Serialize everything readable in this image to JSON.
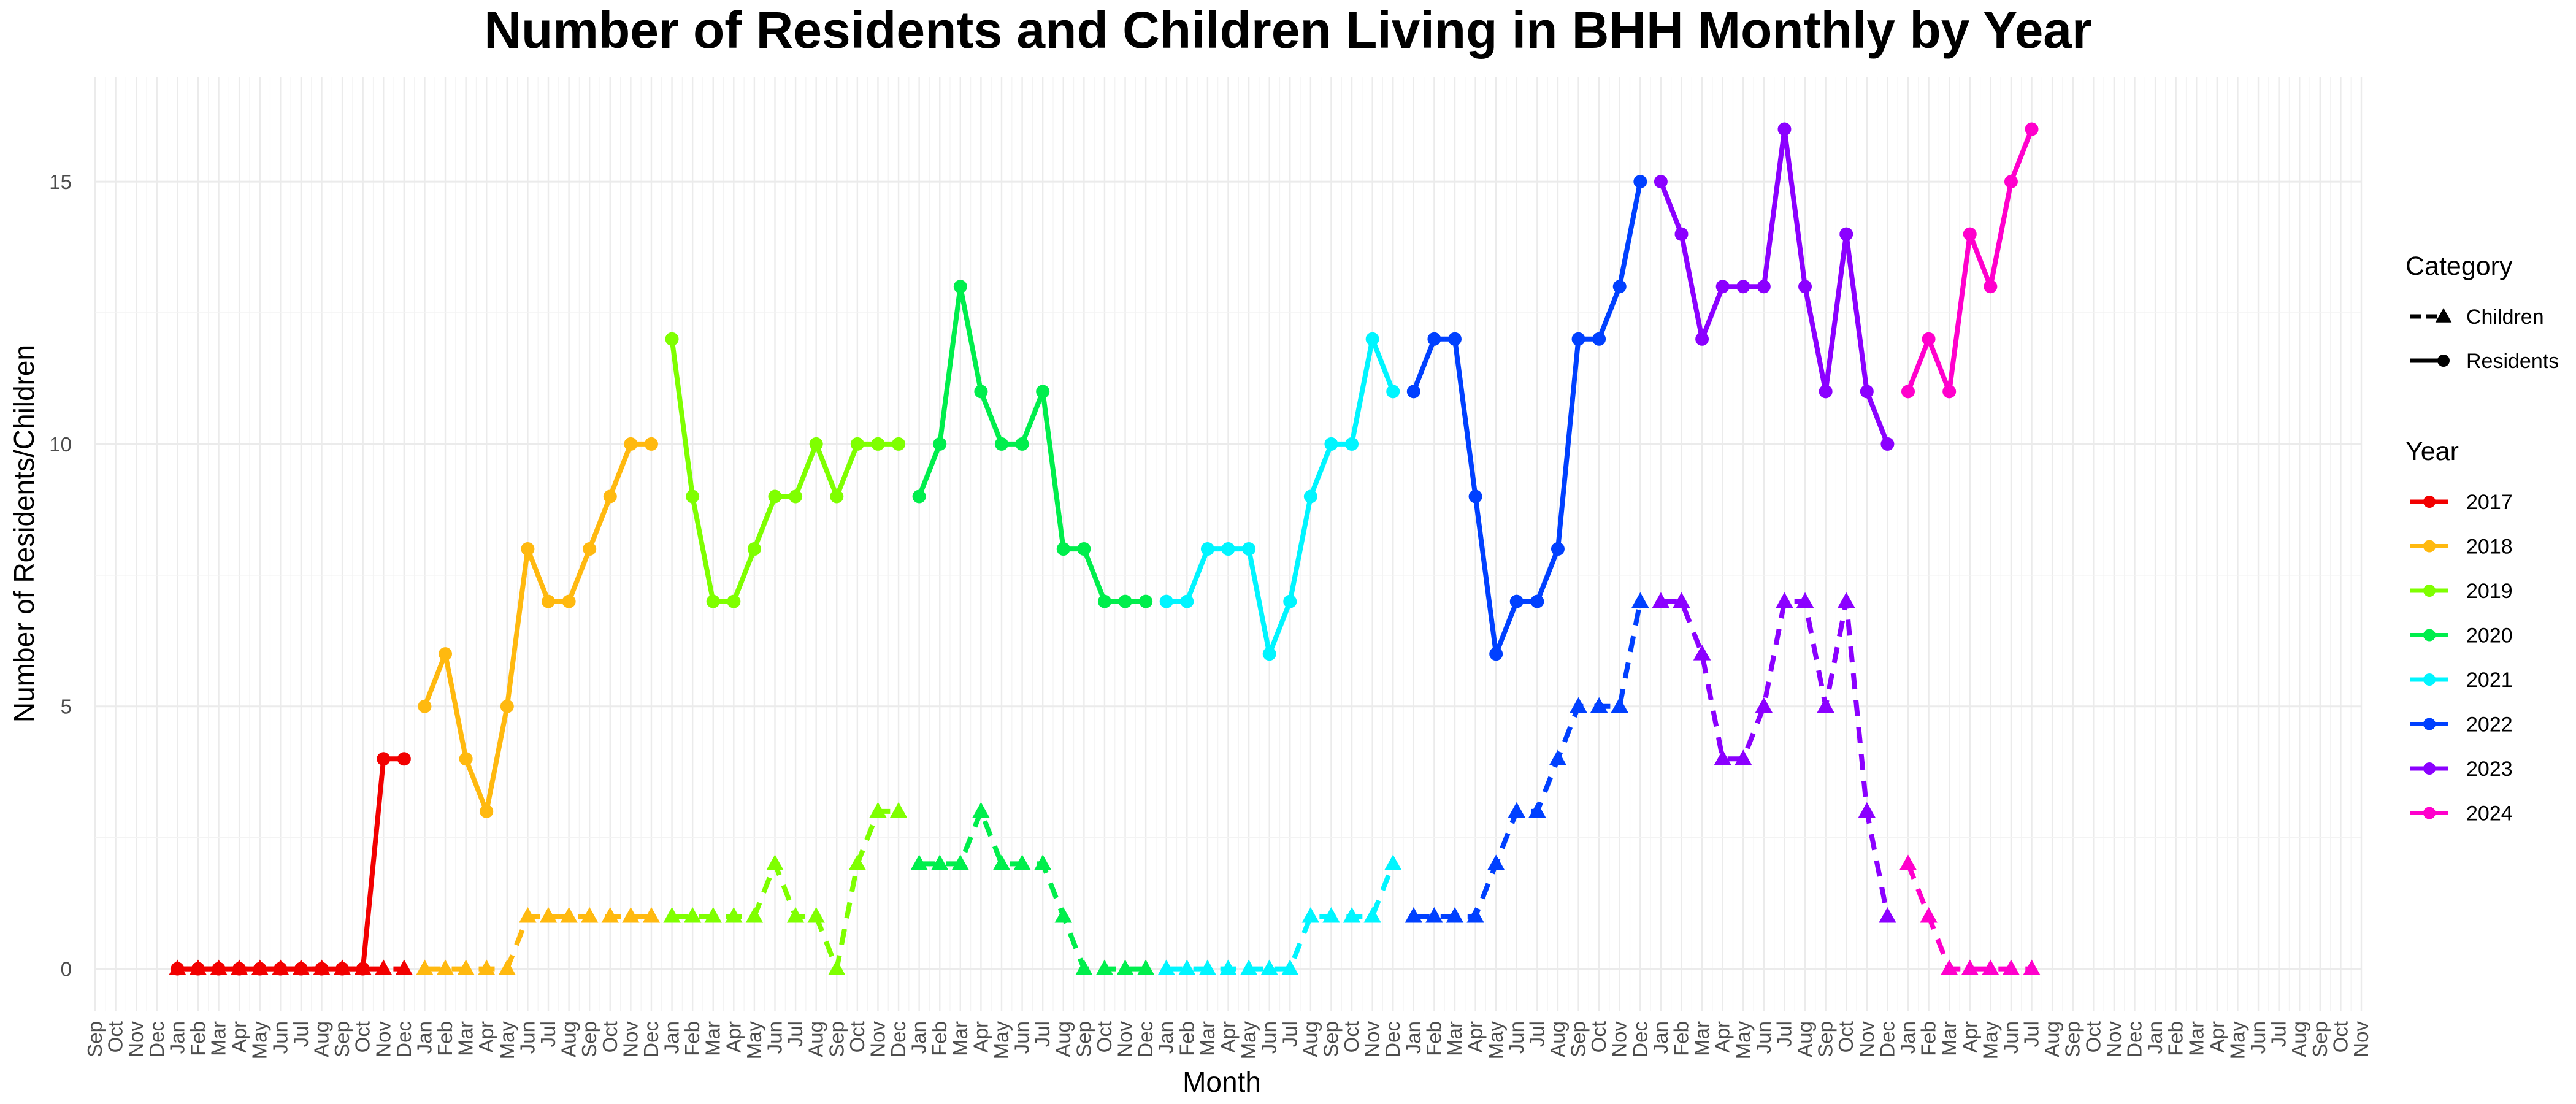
{
  "chart_data": {
    "type": "line",
    "title": "Number of Residents and Children Living in BHH Monthly by Year",
    "xlabel": "Month",
    "ylabel": "Number of Residents/Children",
    "ylim": [
      -0.8,
      17
    ],
    "y_ticks": [
      0,
      5,
      10,
      15
    ],
    "x_tick_labels": [
      "Sep",
      "Oct",
      "Nov",
      "Dec",
      "Jan",
      "Feb",
      "Mar",
      "Apr",
      "May",
      "Jun",
      "Jul",
      "Aug",
      "Sep",
      "Oct",
      "Nov",
      "Dec",
      "Jan",
      "Feb",
      "Mar",
      "Apr",
      "May",
      "Jun",
      "Jul",
      "Aug",
      "Sep",
      "Oct",
      "Nov",
      "Dec",
      "Jan",
      "Feb",
      "Mar",
      "Apr",
      "May",
      "Jun",
      "Jul",
      "Aug",
      "Sep",
      "Oct",
      "Nov",
      "Dec",
      "Jan",
      "Feb",
      "Mar",
      "Apr",
      "May",
      "Jun",
      "Jul",
      "Aug",
      "Sep",
      "Oct",
      "Nov",
      "Dec",
      "Jan",
      "Feb",
      "Mar",
      "Apr",
      "May",
      "Jun",
      "Jul",
      "Aug",
      "Sep",
      "Oct",
      "Nov",
      "Dec",
      "Jan",
      "Feb",
      "Mar",
      "Apr",
      "May",
      "Jun",
      "Jul",
      "Aug",
      "Sep",
      "Oct",
      "Nov",
      "Dec",
      "Jan",
      "Feb",
      "Mar",
      "Apr",
      "May",
      "Jun",
      "Jul",
      "Aug",
      "Sep",
      "Oct",
      "Nov",
      "Dec",
      "Jan",
      "Feb",
      "Mar",
      "Apr",
      "May",
      "Jun",
      "Jul",
      "Aug",
      "Sep",
      "Oct",
      "Nov",
      "Dec",
      "Jan",
      "Feb",
      "Mar",
      "Apr",
      "May",
      "Jun",
      "Jul",
      "Aug",
      "Sep",
      "Oct",
      "Nov"
    ],
    "grid": true,
    "legend_placement": "right",
    "legend": {
      "category_title": "Category",
      "category_items": [
        {
          "label": "Children",
          "linetype": "dashed",
          "marker": "triangle"
        },
        {
          "label": "Residents",
          "linetype": "solid",
          "marker": "circle"
        }
      ],
      "year_title": "Year",
      "year_items": [
        {
          "label": "2017",
          "color": "#F20000"
        },
        {
          "label": "2018",
          "color": "#FFB90F"
        },
        {
          "label": "2019",
          "color": "#7FFF00"
        },
        {
          "label": "2020",
          "color": "#00EE4C"
        },
        {
          "label": "2021",
          "color": "#00F5FF"
        },
        {
          "label": "2022",
          "color": "#0040FF"
        },
        {
          "label": "2023",
          "color": "#8B00FF"
        },
        {
          "label": "2024",
          "color": "#FF00CC"
        }
      ]
    },
    "series": [
      {
        "year": "2017",
        "category": "Residents",
        "color": "#F20000",
        "x": [
          "2017-01",
          "2017-02",
          "2017-03",
          "2017-04",
          "2017-05",
          "2017-06",
          "2017-07",
          "2017-08",
          "2017-09",
          "2017-10",
          "2017-11",
          "2017-12"
        ],
        "y": [
          0,
          0,
          0,
          0,
          0,
          0,
          0,
          0,
          0,
          0,
          4,
          4
        ]
      },
      {
        "year": "2017",
        "category": "Children",
        "color": "#F20000",
        "x": [
          "2017-01",
          "2017-02",
          "2017-03",
          "2017-04",
          "2017-05",
          "2017-06",
          "2017-07",
          "2017-08",
          "2017-09",
          "2017-10",
          "2017-11",
          "2017-12"
        ],
        "y": [
          0,
          0,
          0,
          0,
          0,
          0,
          0,
          0,
          0,
          0,
          0,
          0
        ]
      },
      {
        "year": "2018",
        "category": "Residents",
        "color": "#FFB90F",
        "x": [
          "2018-01",
          "2018-02",
          "2018-03",
          "2018-04",
          "2018-05",
          "2018-06",
          "2018-07",
          "2018-08",
          "2018-09",
          "2018-10",
          "2018-11",
          "2018-12"
        ],
        "y": [
          5,
          6,
          4,
          3,
          5,
          8,
          7,
          7,
          8,
          9,
          10,
          10
        ]
      },
      {
        "year": "2018",
        "category": "Children",
        "color": "#FFB90F",
        "x": [
          "2018-01",
          "2018-02",
          "2018-03",
          "2018-04",
          "2018-05",
          "2018-06",
          "2018-07",
          "2018-08",
          "2018-09",
          "2018-10",
          "2018-11",
          "2018-12"
        ],
        "y": [
          0,
          0,
          0,
          0,
          0,
          1,
          1,
          1,
          1,
          1,
          1,
          1
        ]
      },
      {
        "year": "2019",
        "category": "Residents",
        "color": "#7FFF00",
        "x": [
          "2019-01",
          "2019-02",
          "2019-03",
          "2019-04",
          "2019-05",
          "2019-06",
          "2019-07",
          "2019-08",
          "2019-09",
          "2019-10",
          "2019-11",
          "2019-12"
        ],
        "y": [
          12,
          9,
          7,
          7,
          8,
          9,
          9,
          10,
          9,
          10,
          10,
          10
        ]
      },
      {
        "year": "2019",
        "category": "Children",
        "color": "#7FFF00",
        "x": [
          "2019-01",
          "2019-02",
          "2019-03",
          "2019-04",
          "2019-05",
          "2019-06",
          "2019-07",
          "2019-08",
          "2019-09",
          "2019-10",
          "2019-11",
          "2019-12"
        ],
        "y": [
          1,
          1,
          1,
          1,
          1,
          2,
          1,
          1,
          0,
          2,
          3,
          3
        ]
      },
      {
        "year": "2020",
        "category": "Residents",
        "color": "#00EE4C",
        "x": [
          "2020-01",
          "2020-02",
          "2020-03",
          "2020-04",
          "2020-05",
          "2020-06",
          "2020-07",
          "2020-08",
          "2020-09",
          "2020-10",
          "2020-11",
          "2020-12"
        ],
        "y": [
          9,
          10,
          13,
          11,
          10,
          10,
          11,
          8,
          8,
          7,
          7,
          7
        ]
      },
      {
        "year": "2020",
        "category": "Children",
        "color": "#00EE4C",
        "x": [
          "2020-01",
          "2020-02",
          "2020-03",
          "2020-04",
          "2020-05",
          "2020-06",
          "2020-07",
          "2020-08",
          "2020-09",
          "2020-10",
          "2020-11",
          "2020-12"
        ],
        "y": [
          2,
          2,
          2,
          3,
          2,
          2,
          2,
          1,
          0,
          0,
          0,
          0
        ]
      },
      {
        "year": "2021",
        "category": "Residents",
        "color": "#00F5FF",
        "x": [
          "2021-01",
          "2021-02",
          "2021-03",
          "2021-04",
          "2021-05",
          "2021-06",
          "2021-07",
          "2021-08",
          "2021-09",
          "2021-10",
          "2021-11",
          "2021-12"
        ],
        "y": [
          7,
          7,
          8,
          8,
          8,
          6,
          7,
          9,
          10,
          10,
          12,
          11
        ]
      },
      {
        "year": "2021",
        "category": "Children",
        "color": "#00F5FF",
        "x": [
          "2021-01",
          "2021-02",
          "2021-03",
          "2021-04",
          "2021-05",
          "2021-06",
          "2021-07",
          "2021-08",
          "2021-09",
          "2021-10",
          "2021-11",
          "2021-12"
        ],
        "y": [
          0,
          0,
          0,
          0,
          0,
          0,
          0,
          1,
          1,
          1,
          1,
          2
        ]
      },
      {
        "year": "2022",
        "category": "Residents",
        "color": "#0040FF",
        "x": [
          "2022-01",
          "2022-02",
          "2022-03",
          "2022-04",
          "2022-05",
          "2022-06",
          "2022-07",
          "2022-08",
          "2022-09",
          "2022-10",
          "2022-11",
          "2022-12"
        ],
        "y": [
          11,
          12,
          12,
          9,
          6,
          7,
          7,
          8,
          12,
          12,
          13,
          15
        ]
      },
      {
        "year": "2022",
        "category": "Children",
        "color": "#0040FF",
        "x": [
          "2022-01",
          "2022-02",
          "2022-03",
          "2022-04",
          "2022-05",
          "2022-06",
          "2022-07",
          "2022-08",
          "2022-09",
          "2022-10",
          "2022-11",
          "2022-12"
        ],
        "y": [
          1,
          1,
          1,
          1,
          2,
          3,
          3,
          4,
          5,
          5,
          5,
          7
        ]
      },
      {
        "year": "2023",
        "category": "Residents",
        "color": "#8B00FF",
        "x": [
          "2023-01",
          "2023-02",
          "2023-03",
          "2023-04",
          "2023-05",
          "2023-06",
          "2023-07",
          "2023-08",
          "2023-09",
          "2023-10",
          "2023-11",
          "2023-12"
        ],
        "y": [
          15,
          14,
          12,
          13,
          13,
          13,
          16,
          13,
          11,
          14,
          11,
          10
        ]
      },
      {
        "year": "2023",
        "category": "Children",
        "color": "#8B00FF",
        "x": [
          "2023-01",
          "2023-02",
          "2023-03",
          "2023-04",
          "2023-05",
          "2023-06",
          "2023-07",
          "2023-08",
          "2023-09",
          "2023-10",
          "2023-11",
          "2023-12"
        ],
        "y": [
          7,
          7,
          6,
          4,
          4,
          5,
          7,
          7,
          5,
          7,
          3,
          1
        ]
      },
      {
        "year": "2024",
        "category": "Residents",
        "color": "#FF00CC",
        "x": [
          "2024-01",
          "2024-02",
          "2024-03",
          "2024-04",
          "2024-05",
          "2024-06",
          "2024-07"
        ],
        "y": [
          11,
          12,
          11,
          14,
          13,
          15,
          16
        ]
      },
      {
        "year": "2024",
        "category": "Children",
        "color": "#FF00CC",
        "x": [
          "2024-01",
          "2024-02",
          "2024-03",
          "2024-04",
          "2024-05",
          "2024-06",
          "2024-07"
        ],
        "y": [
          2,
          1,
          0,
          0,
          0,
          0,
          0
        ]
      }
    ]
  }
}
